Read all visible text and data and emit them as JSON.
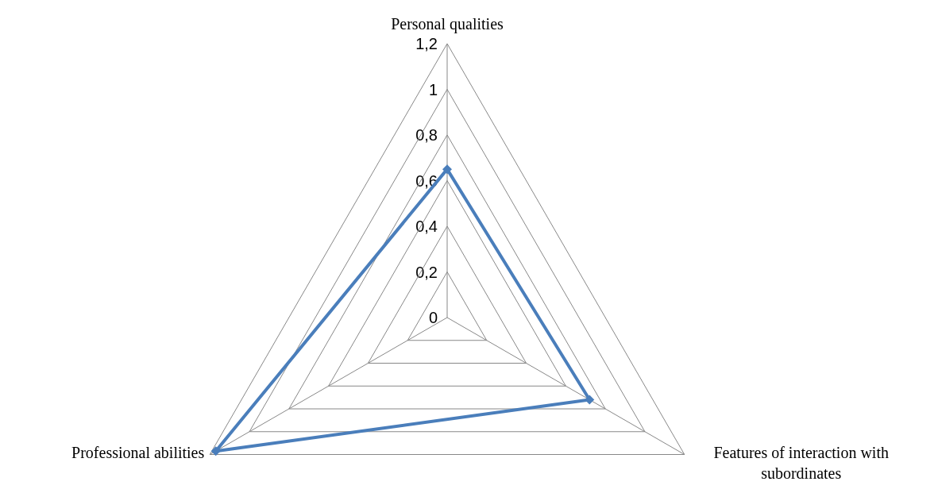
{
  "chart_data": {
    "type": "radar",
    "categories": [
      "Personal qualities",
      "Features of interaction with subordinates",
      "Professional abilities"
    ],
    "series": [
      {
        "color": "#4a7ebb",
        "values": [
          0.65,
          0.72,
          1.17
        ]
      }
    ],
    "ylim": [
      0,
      1.2
    ],
    "yticks": [
      0,
      {
        "value": 0.2,
        "label": "0,2"
      },
      {
        "value": 0.4,
        "label": "0,4"
      },
      {
        "value": 0.6,
        "label": "0,6"
      },
      {
        "value": 0.8,
        "label": "0,8"
      },
      1,
      {
        "value": 1.2,
        "label": "1,2"
      }
    ],
    "grid": true,
    "marker": "diamond",
    "line_style": "solid"
  }
}
